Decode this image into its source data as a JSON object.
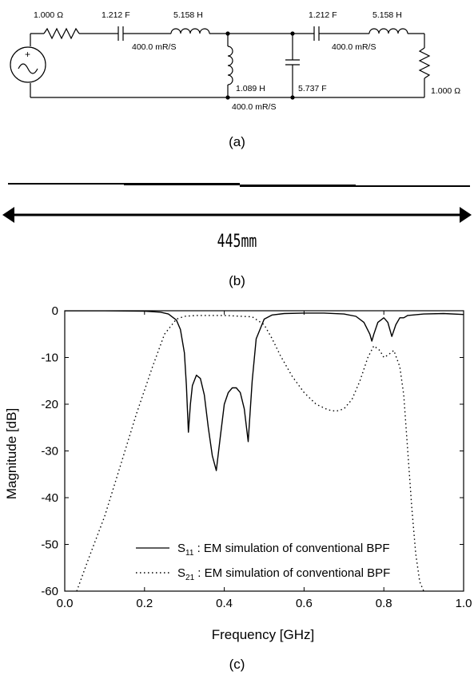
{
  "circuit": {
    "r_source": "1.000 Ω",
    "c_series_1": "1.212 F",
    "l_series_1": "5.158 H",
    "imp_1": "400.0 mR/S",
    "l_shunt": "1.089 H",
    "imp_2": "400.0 mR/S",
    "c_shunt": "5.737 F",
    "c_series_2": "1.212 F",
    "l_series_2": "5.158 H",
    "imp_3": "400.0 mR/S",
    "r_load": "1.000 Ω"
  },
  "captions": {
    "a": "(a)",
    "b": "(b)",
    "c": "(c)"
  },
  "layout_b": {
    "dimension_label": "445mm"
  },
  "chart_data": {
    "type": "line",
    "xlabel": "Frequency [GHz]",
    "ylabel": "Magnitude [dB]",
    "xlim": [
      0.0,
      1.0
    ],
    "ylim": [
      -60,
      0
    ],
    "xticks": [
      "0.0",
      "0.2",
      "0.4",
      "0.6",
      "0.8",
      "1.0"
    ],
    "yticks": [
      "0",
      "-10",
      "-20",
      "-30",
      "-40",
      "-50",
      "-60"
    ],
    "legend_position": "bottom-right",
    "series": [
      {
        "name": "S11 : EM simulation of conventional BPF",
        "style": "solid",
        "x": [
          0.0,
          0.1,
          0.2,
          0.24,
          0.26,
          0.28,
          0.29,
          0.3,
          0.305,
          0.31,
          0.315,
          0.32,
          0.33,
          0.34,
          0.35,
          0.36,
          0.37,
          0.38,
          0.39,
          0.4,
          0.41,
          0.42,
          0.43,
          0.44,
          0.45,
          0.46,
          0.47,
          0.48,
          0.5,
          0.52,
          0.55,
          0.6,
          0.65,
          0.7,
          0.73,
          0.75,
          0.765,
          0.77,
          0.775,
          0.785,
          0.8,
          0.81,
          0.82,
          0.83,
          0.84,
          0.85,
          0.86,
          0.9,
          0.95,
          1.0
        ],
        "y": [
          0,
          0,
          -0.1,
          -0.3,
          -0.7,
          -2,
          -4,
          -9,
          -16,
          -26,
          -20,
          -16,
          -13.8,
          -14.5,
          -18,
          -25,
          -31,
          -34.2,
          -27,
          -20,
          -17.5,
          -16.5,
          -16.5,
          -17.5,
          -21,
          -28,
          -15,
          -6,
          -1.8,
          -0.9,
          -0.6,
          -0.5,
          -0.5,
          -0.7,
          -1.2,
          -2.5,
          -5,
          -6.5,
          -5,
          -2.5,
          -1.5,
          -2.5,
          -5.5,
          -3,
          -1.5,
          -1.5,
          -1,
          -0.7,
          -0.6,
          -0.8
        ]
      },
      {
        "name": "S21 : EM simulation of conventional BPF",
        "style": "dotted",
        "x": [
          0.03,
          0.06,
          0.1,
          0.14,
          0.18,
          0.22,
          0.25,
          0.28,
          0.3,
          0.33,
          0.4,
          0.47,
          0.5,
          0.52,
          0.54,
          0.57,
          0.6,
          0.63,
          0.66,
          0.68,
          0.7,
          0.72,
          0.74,
          0.76,
          0.775,
          0.79,
          0.8,
          0.81,
          0.825,
          0.84,
          0.85,
          0.86,
          0.87,
          0.88,
          0.89,
          0.9
        ],
        "y": [
          -60,
          -53,
          -44,
          -33,
          -22,
          -12,
          -5,
          -1.8,
          -1.2,
          -1,
          -1,
          -1.3,
          -3,
          -6,
          -9.5,
          -14,
          -17.5,
          -20,
          -21.2,
          -21.5,
          -21,
          -19,
          -15,
          -10,
          -7.5,
          -8.5,
          -10,
          -9.5,
          -8.5,
          -12,
          -18,
          -30,
          -42,
          -52,
          -58,
          -60
        ]
      }
    ]
  }
}
